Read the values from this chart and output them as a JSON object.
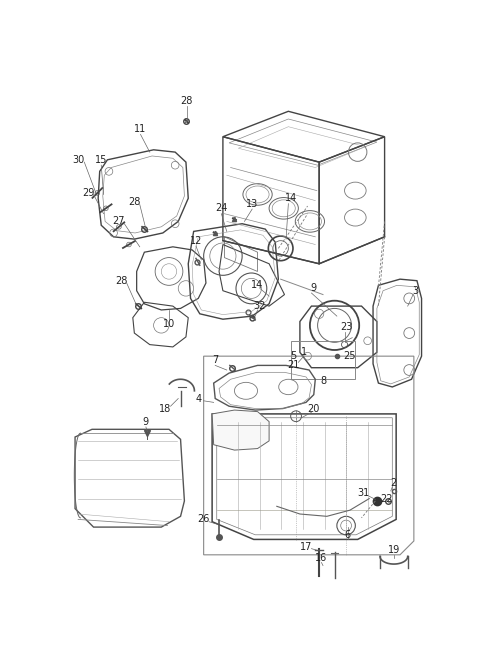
{
  "bg_color": "#ffffff",
  "lc": "#555555",
  "lc2": "#777777",
  "figsize": [
    4.8,
    6.58
  ],
  "dpi": 100,
  "label_fs": 7.0
}
